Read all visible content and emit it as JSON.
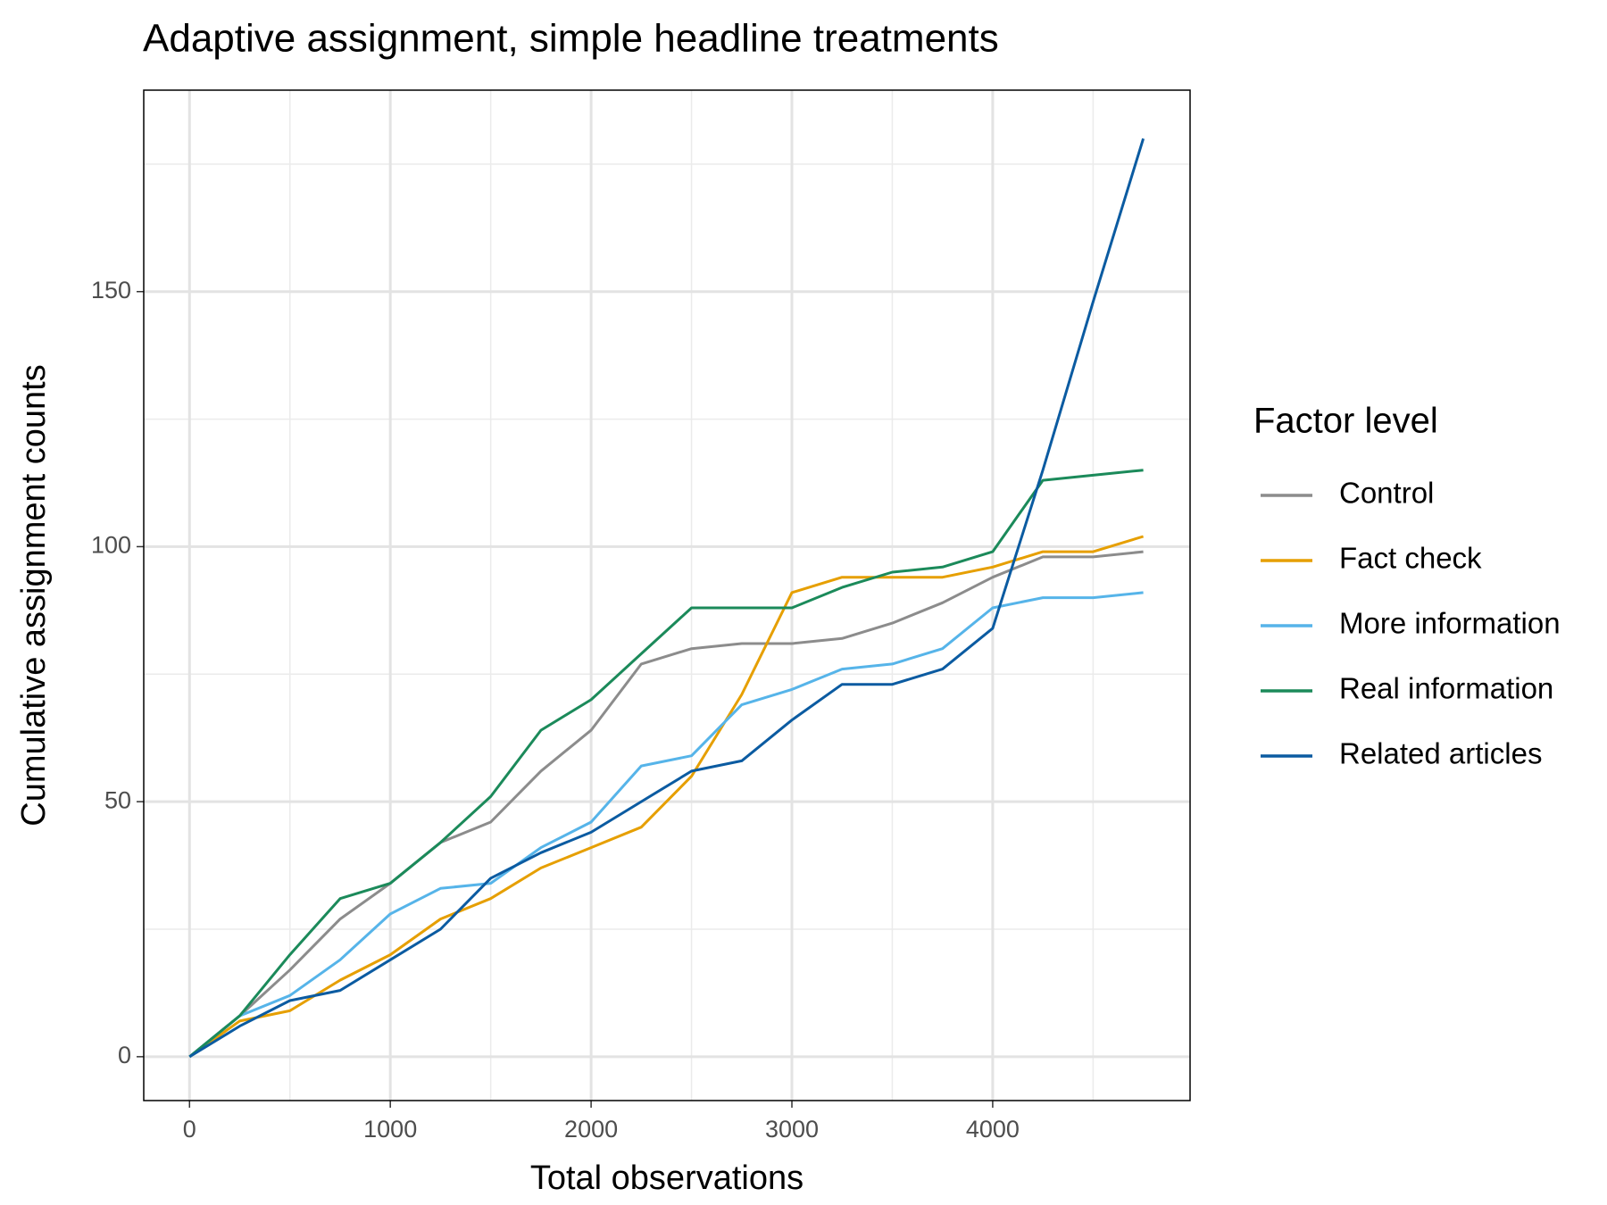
{
  "chart_data": {
    "type": "line",
    "title": "Adaptive assignment, simple headline treatments",
    "x_label": "Total observations",
    "y_label": "Cumulative assignment counts",
    "legend_title": "Factor level",
    "legend_position": "right",
    "grid": true,
    "x": [
      0,
      250,
      500,
      750,
      1000,
      1250,
      1500,
      1750,
      2000,
      2250,
      2500,
      2750,
      3000,
      3250,
      3500,
      3750,
      4000,
      4250,
      4500,
      4750
    ],
    "series": [
      {
        "name": "Control",
        "color": "#8c8c8c",
        "values": [
          0,
          8,
          17,
          27,
          34,
          42,
          46,
          56,
          64,
          77,
          80,
          81,
          81,
          82,
          85,
          89,
          94,
          98,
          98,
          99
        ]
      },
      {
        "name": "Fact check",
        "color": "#e69f00",
        "values": [
          0,
          7,
          9,
          15,
          20,
          27,
          31,
          37,
          41,
          45,
          55,
          71,
          91,
          94,
          94,
          94,
          96,
          99,
          99,
          102
        ]
      },
      {
        "name": "More information",
        "color": "#56b4e9",
        "values": [
          0,
          8,
          12,
          19,
          28,
          33,
          34,
          41,
          46,
          57,
          59,
          69,
          72,
          76,
          77,
          80,
          88,
          90,
          90,
          91
        ]
      },
      {
        "name": "Real information",
        "color": "#1b8a5a",
        "values": [
          0,
          8,
          20,
          31,
          34,
          42,
          51,
          64,
          70,
          79,
          88,
          88,
          88,
          92,
          95,
          96,
          99,
          113,
          114,
          115
        ]
      },
      {
        "name": "Related articles",
        "color": "#0b5ba1",
        "values": [
          0,
          6,
          11,
          13,
          19,
          25,
          35,
          40,
          44,
          50,
          56,
          58,
          66,
          73,
          73,
          76,
          84,
          115,
          148,
          180
        ]
      }
    ],
    "xlim": [
      -228,
      4983
    ],
    "ylim": [
      -8.6,
      189.5
    ],
    "xticks": [
      0,
      1000,
      2000,
      3000,
      4000
    ],
    "yticks": [
      0,
      50,
      100,
      150
    ],
    "x_minor_ticks": [
      500,
      1500,
      2500,
      3500,
      4500
    ],
    "y_minor_ticks": [
      25,
      75,
      125,
      175
    ]
  }
}
